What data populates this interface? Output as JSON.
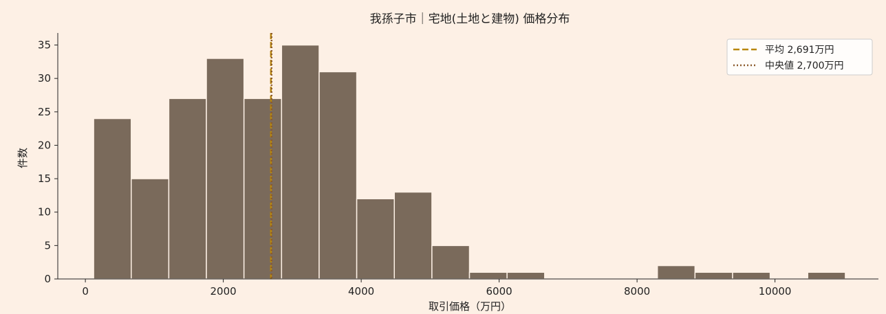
{
  "chart_data": {
    "type": "bar",
    "title": "我孫子市｜宅地(土地と建物) 価格分布",
    "xlabel": "取引価格（万円）",
    "ylabel": "件数",
    "xlim": [
      -400,
      11500
    ],
    "ylim": [
      0,
      36.8
    ],
    "x_ticks": [
      0,
      2000,
      4000,
      6000,
      8000,
      10000
    ],
    "x_tick_labels": [
      "0",
      "2000",
      "4000",
      "6000",
      "8000",
      "10000"
    ],
    "y_ticks": [
      0,
      5,
      10,
      15,
      20,
      25,
      30,
      35
    ],
    "y_tick_labels": [
      "0",
      "5",
      "10",
      "15",
      "20",
      "25",
      "30",
      "35"
    ],
    "bin_width": 545,
    "bins": [
      {
        "x0": 120,
        "count": 24
      },
      {
        "x0": 665,
        "count": 15
      },
      {
        "x0": 1210,
        "count": 27
      },
      {
        "x0": 1755,
        "count": 33
      },
      {
        "x0": 2300,
        "count": 27
      },
      {
        "x0": 2845,
        "count": 35
      },
      {
        "x0": 3390,
        "count": 31
      },
      {
        "x0": 3935,
        "count": 12
      },
      {
        "x0": 4480,
        "count": 13
      },
      {
        "x0": 5025,
        "count": 5
      },
      {
        "x0": 5570,
        "count": 1
      },
      {
        "x0": 6115,
        "count": 1
      },
      {
        "x0": 6660,
        "count": 0
      },
      {
        "x0": 7205,
        "count": 0
      },
      {
        "x0": 7750,
        "count": 0
      },
      {
        "x0": 8295,
        "count": 2
      },
      {
        "x0": 8840,
        "count": 1
      },
      {
        "x0": 9385,
        "count": 1
      },
      {
        "x0": 9930,
        "count": 0
      },
      {
        "x0": 10475,
        "count": 1
      }
    ],
    "mean": {
      "value": 2691,
      "label": "平均 2,691万円"
    },
    "median": {
      "value": 2700,
      "label": "中央値 2,700万円"
    },
    "legend_position": "top-right",
    "grid": false,
    "colors": {
      "background": "#fdf0e5",
      "bar": "#7a6a5b",
      "bar_edge": "#fdf0e5",
      "mean_line": "#b8860b",
      "median_line": "#8b5a2b",
      "axis": "#222222",
      "text": "#222222"
    }
  }
}
